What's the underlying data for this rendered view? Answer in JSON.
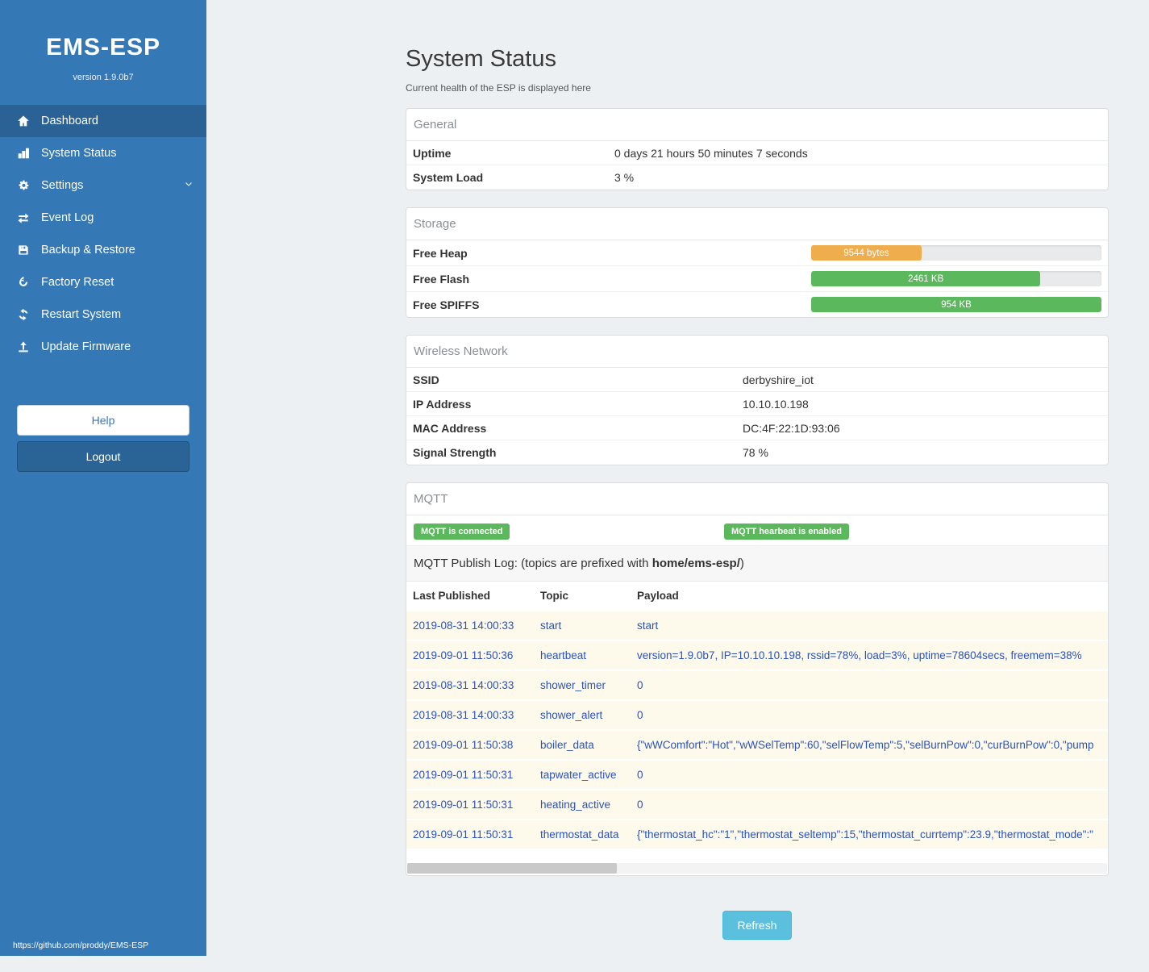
{
  "colors": {
    "sidebar_blue": "#3478b6",
    "active_item_blue": "#2a6295",
    "success_green": "#5cb85c",
    "warning_orange": "#f0ad4e",
    "info_cyan": "#5bc0de",
    "link_blue": "#2a52be"
  },
  "sidebar": {
    "title": "EMS-ESP",
    "version": "version 1.9.0b7",
    "items": [
      {
        "label": "Dashboard",
        "icon": "home-icon",
        "active": true
      },
      {
        "label": "System Status",
        "icon": "bar-chart-icon",
        "active": false
      },
      {
        "label": "Settings",
        "icon": "gear-icon",
        "active": false,
        "chevron": true
      },
      {
        "label": "Event Log",
        "icon": "exchange-arrows-icon",
        "active": false
      },
      {
        "label": "Backup & Restore",
        "icon": "floppy-save-icon",
        "active": false
      },
      {
        "label": "Factory Reset",
        "icon": "undo-circle-icon",
        "active": false
      },
      {
        "label": "Restart System",
        "icon": "refresh-circle-icon",
        "active": false
      },
      {
        "label": "Update Firmware",
        "icon": "upload-icon",
        "active": false
      }
    ],
    "help_label": "Help",
    "logout_label": "Logout",
    "footer_link": "https://github.com/proddy/EMS-ESP"
  },
  "main": {
    "title": "System Status",
    "subtitle": "Current health of the ESP is displayed here",
    "general": {
      "header": "General",
      "rows": [
        {
          "label": "Uptime",
          "value": "0 days 21 hours 50 minutes 7 seconds"
        },
        {
          "label": "System Load",
          "value": "3 %"
        }
      ]
    },
    "storage": {
      "header": "Storage",
      "rows": [
        {
          "label": "Free Heap",
          "value": "9544 bytes",
          "percent": 38,
          "color": "#f0ad4e"
        },
        {
          "label": "Free Flash",
          "value": "2461 KB",
          "percent": 79,
          "color": "#5cb85c"
        },
        {
          "label": "Free SPIFFS",
          "value": "954 KB",
          "percent": 100,
          "color": "#5cb85c"
        }
      ]
    },
    "wireless": {
      "header": "Wireless Network",
      "rows": [
        {
          "label": "SSID",
          "value": "derbyshire_iot"
        },
        {
          "label": "IP Address",
          "value": "10.10.10.198"
        },
        {
          "label": "MAC Address",
          "value": "DC:4F:22:1D:93:06"
        },
        {
          "label": "Signal Strength",
          "value": "78 %"
        }
      ]
    },
    "mqtt": {
      "header": "MQTT",
      "badges": [
        "MQTT is connected",
        "MQTT hearbeat is enabled"
      ],
      "log_title_prefix": "MQTT Publish Log: (topics are prefixed with ",
      "log_title_bold": "home/ems-esp/",
      "log_title_suffix": ")",
      "table": {
        "headers": [
          "Last Published",
          "Topic",
          "Payload"
        ],
        "rows": [
          {
            "published": "2019-08-31 14:00:33",
            "topic": "start",
            "payload": "start"
          },
          {
            "published": "2019-09-01 11:50:36",
            "topic": "heartbeat",
            "payload": "version=1.9.0b7, IP=10.10.10.198, rssid=78%, load=3%, uptime=78604secs, freemem=38%"
          },
          {
            "published": "2019-08-31 14:00:33",
            "topic": "shower_timer",
            "payload": "0"
          },
          {
            "published": "2019-08-31 14:00:33",
            "topic": "shower_alert",
            "payload": "0"
          },
          {
            "published": "2019-09-01 11:50:38",
            "topic": "boiler_data",
            "payload": "{\"wWComfort\":\"Hot\",\"wWSelTemp\":60,\"selFlowTemp\":5,\"selBurnPow\":0,\"curBurnPow\":0,\"pump"
          },
          {
            "published": "2019-09-01 11:50:31",
            "topic": "tapwater_active",
            "payload": "0"
          },
          {
            "published": "2019-09-01 11:50:31",
            "topic": "heating_active",
            "payload": "0"
          },
          {
            "published": "2019-09-01 11:50:31",
            "topic": "thermostat_data",
            "payload": "{\"thermostat_hc\":\"1\",\"thermostat_seltemp\":15,\"thermostat_currtemp\":23.9,\"thermostat_mode\":\""
          }
        ]
      }
    },
    "refresh_label": "Refresh"
  }
}
